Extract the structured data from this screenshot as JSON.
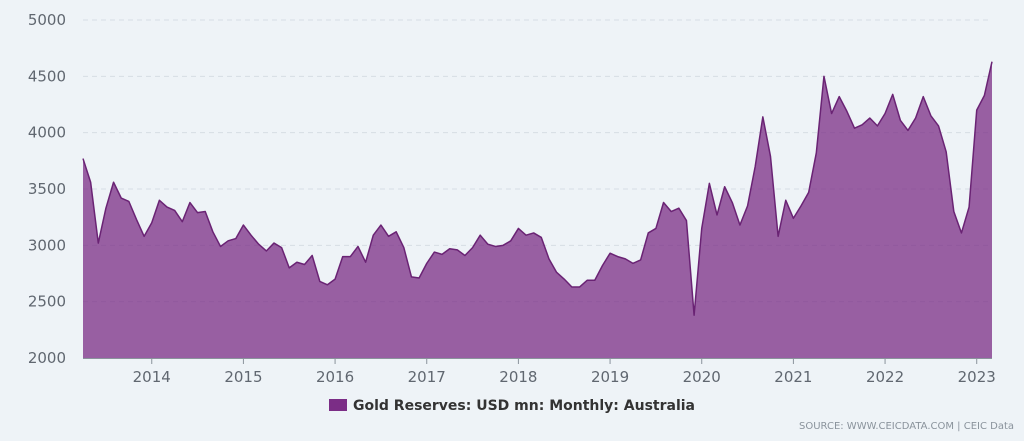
{
  "chart_data": {
    "type": "area",
    "x_start": "2013-04",
    "xlim": [
      "2013-04",
      "2023-03"
    ],
    "ylim": [
      2000,
      5000
    ],
    "yticks": [
      2000,
      2500,
      3000,
      3500,
      4000,
      4500,
      5000
    ],
    "xticks": [
      "2014",
      "2015",
      "2016",
      "2017",
      "2018",
      "2019",
      "2020",
      "2021",
      "2022",
      "2023"
    ],
    "grid": true,
    "legend_position": "bottom",
    "series": [
      {
        "name": "Gold Reserves: USD mn: Monthly: Australia",
        "color": "#7b2d86",
        "values": [
          3770,
          3560,
          3020,
          3330,
          3560,
          3420,
          3390,
          3230,
          3080,
          3200,
          3400,
          3340,
          3310,
          3210,
          3380,
          3290,
          3300,
          3120,
          2990,
          3040,
          3060,
          3180,
          3090,
          3010,
          2950,
          3020,
          2980,
          2800,
          2850,
          2830,
          2910,
          2680,
          2650,
          2700,
          2900,
          2900,
          2990,
          2850,
          3090,
          3180,
          3080,
          3120,
          2980,
          2720,
          2710,
          2840,
          2940,
          2920,
          2970,
          2960,
          2910,
          2980,
          3090,
          3010,
          2990,
          3000,
          3040,
          3150,
          3090,
          3110,
          3070,
          2880,
          2760,
          2700,
          2630,
          2630,
          2690,
          2690,
          2820,
          2930,
          2900,
          2880,
          2840,
          2870,
          3110,
          3150,
          3380,
          3300,
          3330,
          3220,
          2380,
          3150,
          3550,
          3270,
          3520,
          3380,
          3180,
          3350,
          3700,
          4140,
          3790,
          3080,
          3400,
          3240,
          3350,
          3470,
          3820,
          4500,
          4170,
          4320,
          4190,
          4040,
          4070,
          4130,
          4060,
          4170,
          4340,
          4110,
          4020,
          4130,
          4320,
          4150,
          4060,
          3830,
          3300,
          3110,
          3340,
          4200,
          4330,
          4630
        ]
      }
    ]
  },
  "legend": {
    "label": "Gold Reserves: USD mn: Monthly: Australia"
  },
  "source": {
    "text": "SOURCE: WWW.CEICDATA.COM | CEIC Data"
  }
}
